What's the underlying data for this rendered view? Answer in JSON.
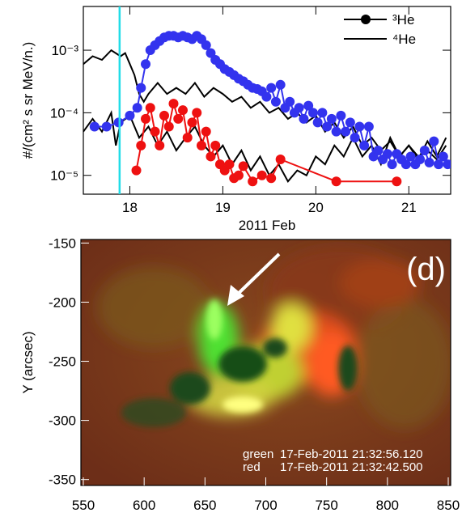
{
  "chart_data": [
    {
      "type": "line",
      "xlabel": "2011 Feb",
      "ylabel": "#/(cm² s sr MeV/n.)",
      "xlim": [
        17.5,
        21.45
      ],
      "xticks": [
        18,
        19,
        20,
        21
      ],
      "ylim": [
        5e-06,
        0.005
      ],
      "ylog": true,
      "yticks": [
        {
          "value": 0.001,
          "label": "10⁻³"
        },
        {
          "value": 0.0001,
          "label": "10⁻⁴"
        },
        {
          "value": 1e-05,
          "label": "10⁻⁵"
        }
      ],
      "vline": {
        "x": 17.89,
        "color": "#22dde8"
      },
      "legend": [
        {
          "name": "³He",
          "marker": "circle"
        },
        {
          "name": "⁴He",
          "marker": "none"
        }
      ],
      "series": [
        {
          "color": "#3333ee",
          "marker": "circle",
          "x": [
            17.62,
            17.75,
            17.88,
            18.0,
            18.08,
            18.12,
            18.17,
            18.22,
            18.27,
            18.32,
            18.37,
            18.42,
            18.47,
            18.52,
            18.57,
            18.62,
            18.67,
            18.72,
            18.77,
            18.82,
            18.87,
            18.92,
            18.97,
            19.02,
            19.07,
            19.12,
            19.17,
            19.22,
            19.27,
            19.32,
            19.37,
            19.42,
            19.47,
            19.52,
            19.57,
            19.62,
            19.67,
            19.72,
            19.77,
            19.82,
            19.87,
            19.92,
            19.97,
            20.02,
            20.07,
            20.12,
            20.17,
            20.22,
            20.27,
            20.32,
            20.37,
            20.42,
            20.47,
            20.52,
            20.57,
            20.62,
            20.67,
            20.72,
            20.77,
            20.82,
            20.87,
            20.92,
            20.97,
            21.02,
            21.07,
            21.12,
            21.17,
            21.22,
            21.27,
            21.32,
            21.37,
            21.42
          ],
          "values": [
            6e-05,
            6e-05,
            7e-05,
            9e-05,
            0.00012,
            0.00025,
            0.0006,
            0.001,
            0.0012,
            0.0014,
            0.0016,
            0.0017,
            0.0017,
            0.0016,
            0.0017,
            0.0016,
            0.0015,
            0.0017,
            0.0015,
            0.0012,
            0.0009,
            0.0007,
            0.0006,
            0.0005,
            0.00045,
            0.0004,
            0.00035,
            0.00032,
            0.00028,
            0.00025,
            0.00024,
            0.00022,
            0.00018,
            0.00025,
            0.00015,
            0.00028,
            0.00012,
            0.00015,
            0.0001,
            0.00012,
            8e-05,
            0.00013,
            0.0001,
            7e-05,
            0.0001,
            6e-05,
            8e-05,
            5e-05,
            9e-05,
            5e-05,
            7e-05,
            4e-05,
            6e-05,
            3e-05,
            6e-05,
            2e-05,
            2.5e-05,
            1.8e-05,
            2.2e-05,
            1.5e-05,
            2.2e-05,
            1.8e-05,
            1.5e-05,
            2e-05,
            1.5e-05,
            1.8e-05,
            2.5e-05,
            1.6e-05,
            3.5e-05,
            1.5e-05,
            2e-05,
            1.5e-05
          ]
        },
        {
          "color": "#ee1111",
          "marker": "circle",
          "x": [
            18.07,
            18.12,
            18.17,
            18.22,
            18.27,
            18.32,
            18.37,
            18.42,
            18.47,
            18.52,
            18.57,
            18.62,
            18.67,
            18.72,
            18.77,
            18.82,
            18.87,
            18.92,
            18.97,
            19.02,
            19.07,
            19.12,
            19.17,
            19.22,
            19.32,
            19.42,
            19.52,
            19.62,
            20.22,
            20.87
          ],
          "values": [
            1.2e-05,
            3e-05,
            8e-05,
            0.00012,
            5e-05,
            3e-05,
            9e-05,
            6e-05,
            0.00014,
            8e-05,
            0.00011,
            4e-05,
            7e-05,
            0.0001,
            3e-05,
            5e-05,
            2e-05,
            3e-05,
            1.5e-05,
            1.2e-05,
            1.5e-05,
            9e-06,
            1e-05,
            1.4e-05,
            8e-06,
            1e-05,
            9e-06,
            1.8e-05,
            8e-06,
            8e-06
          ]
        },
        {
          "color": "#000000",
          "marker": "none",
          "x": [
            17.5,
            17.6,
            17.7,
            17.8,
            17.9,
            17.95,
            18.0,
            18.05,
            18.1,
            18.15,
            18.2,
            18.3,
            18.4,
            18.5,
            18.6,
            18.7,
            18.8,
            18.9,
            19.0,
            19.1,
            19.2,
            19.3,
            19.4,
            19.5,
            19.6,
            19.7,
            19.8,
            19.9,
            20.0,
            20.1,
            20.2,
            20.3,
            20.4,
            20.5,
            20.6,
            20.7,
            20.8,
            20.9,
            21.0,
            21.1,
            21.2,
            21.3,
            21.4
          ],
          "values": [
            0.0006,
            0.0008,
            0.0007,
            0.001,
            0.0008,
            0.0009,
            0.0006,
            0.0004,
            0.0002,
            0.00015,
            0.0002,
            0.0003,
            0.0002,
            0.00025,
            0.0002,
            0.0003,
            0.00018,
            0.00025,
            0.0002,
            0.00015,
            0.00018,
            0.00012,
            0.00015,
            0.0001,
            0.00012,
            8e-05,
            0.0001,
            7e-05,
            9e-05,
            5e-05,
            7e-05,
            4e-05,
            6e-05,
            3e-05,
            4e-05,
            2.5e-05,
            3.5e-05,
            2e-05,
            3e-05,
            2e-05,
            2.5e-05,
            1.8e-05,
            3e-05
          ]
        },
        {
          "color": "#000000",
          "marker": "none",
          "x": [
            17.5,
            17.6,
            17.7,
            17.8,
            17.85,
            17.9,
            18.0,
            18.1,
            18.2,
            18.3,
            18.4,
            18.5,
            18.6,
            18.7,
            18.8,
            18.9,
            19.0,
            19.1,
            19.2,
            19.3,
            19.4,
            19.5,
            19.6,
            19.7,
            19.8,
            19.9,
            20.0,
            20.1,
            20.2,
            20.3,
            20.4,
            20.5,
            20.6,
            20.7,
            20.8,
            20.9,
            21.0,
            21.1,
            21.2,
            21.3,
            21.4
          ],
          "values": [
            5e-05,
            8e-05,
            5e-05,
            0.0001,
            3e-05,
            7e-05,
            9e-05,
            4e-05,
            6e-05,
            3e-05,
            5e-05,
            2.5e-05,
            4e-05,
            6e-05,
            3e-05,
            2e-05,
            3e-05,
            1.5e-05,
            2.5e-05,
            1.2e-05,
            2e-05,
            1e-05,
            1.5e-05,
            8e-06,
            1.2e-05,
            1e-05,
            2e-05,
            1.5e-05,
            3e-05,
            2e-05,
            4e-05,
            2e-05,
            3e-05,
            1.5e-05,
            4e-05,
            2e-05,
            3e-05,
            1.8e-05,
            3.5e-05,
            2e-05,
            4e-05
          ]
        }
      ]
    },
    {
      "type": "image",
      "ylabel": "Y (arcsec)",
      "xlim": [
        548,
        852
      ],
      "xticks": [
        550,
        600,
        650,
        700,
        750,
        800,
        850
      ],
      "ylim": [
        -355,
        -147
      ],
      "yticks": [
        -150,
        -200,
        -250,
        -300,
        -350
      ],
      "panel": "(d)",
      "notes": [
        {
          "label": "green",
          "time": "17-Feb-2011 21:32:56.120"
        },
        {
          "label": "red",
          "time": "17-Feb-2011 21:32:42.500"
        }
      ]
    }
  ]
}
